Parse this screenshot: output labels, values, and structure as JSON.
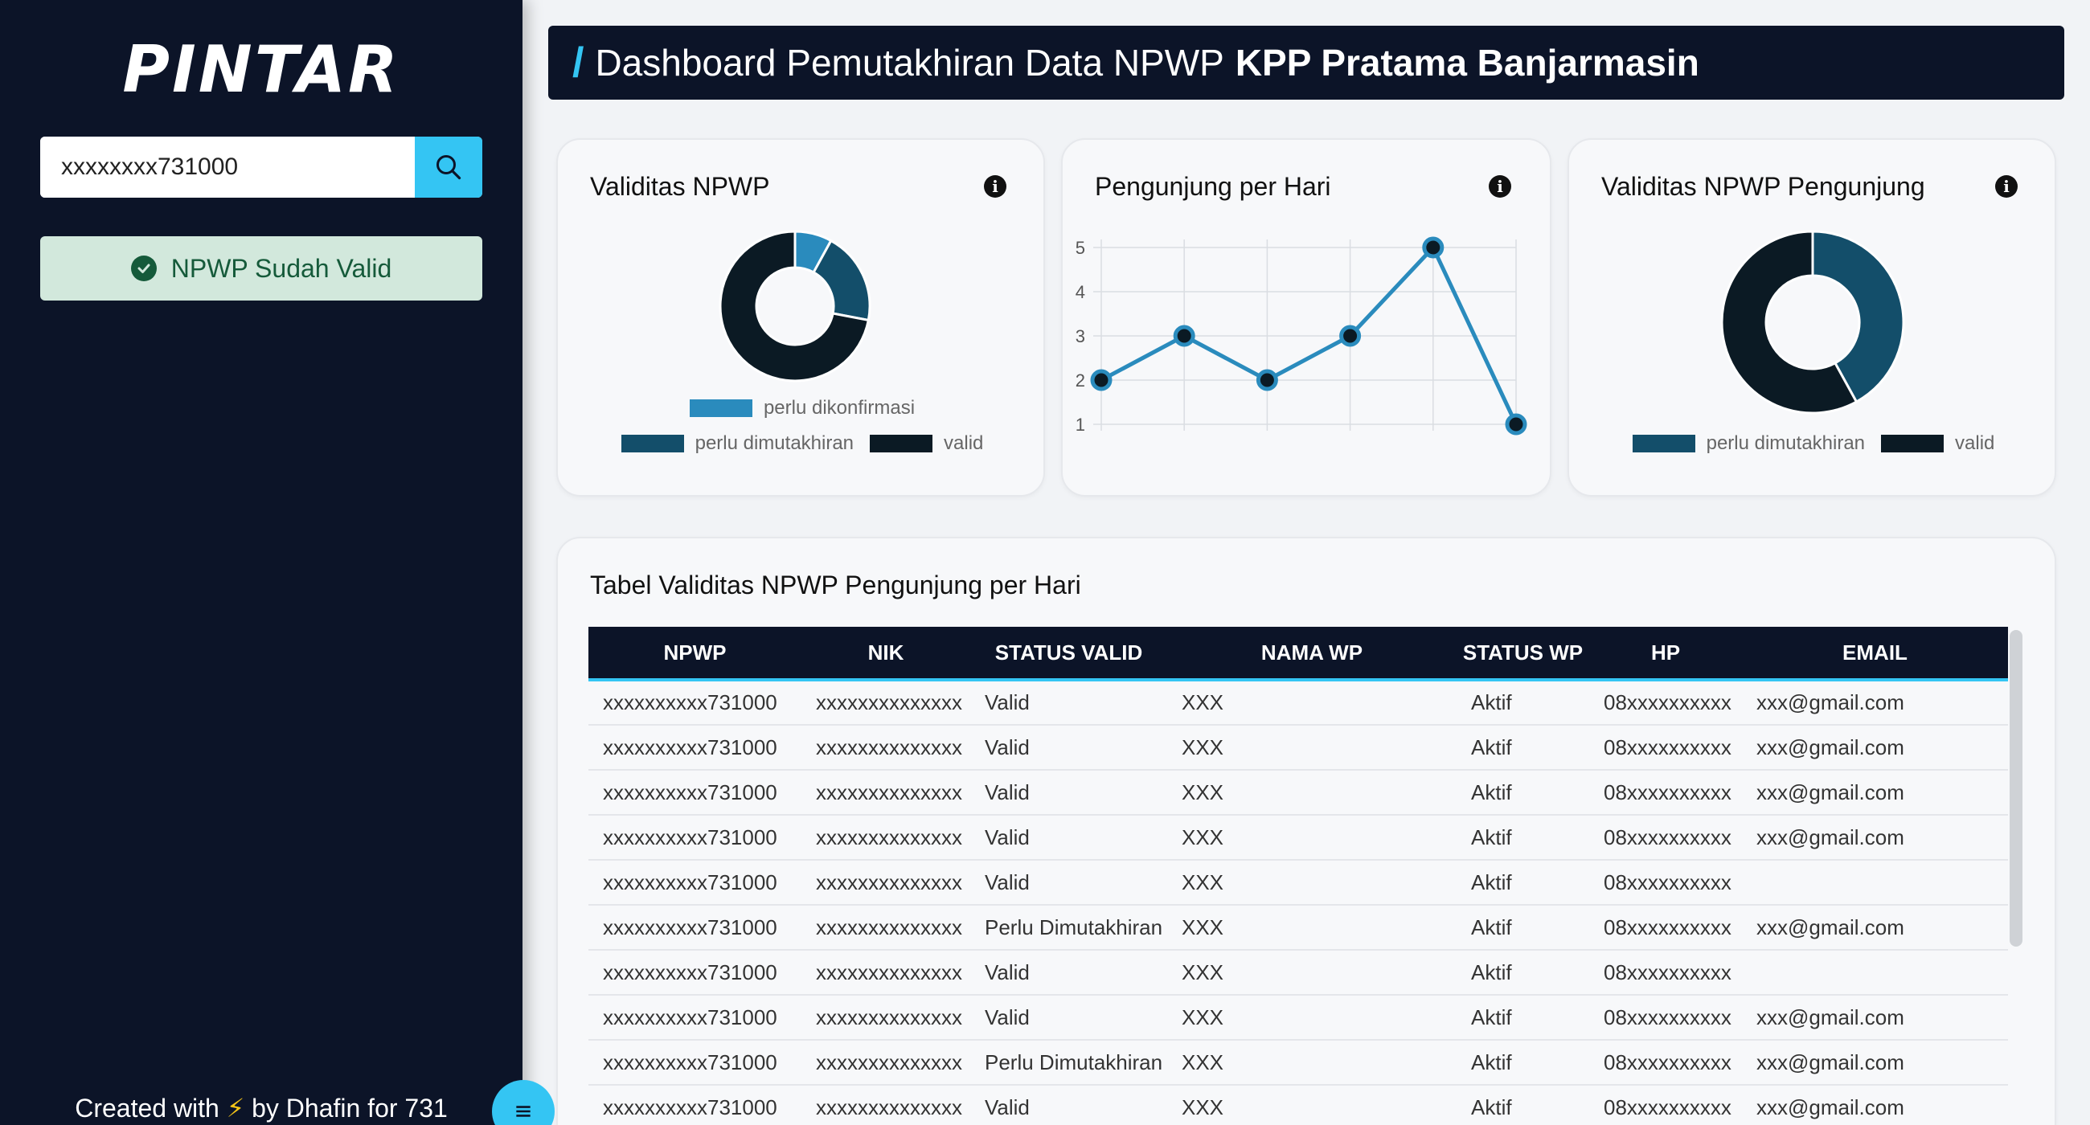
{
  "sidebar": {
    "logo": "PINTAR",
    "search": {
      "value": "xxxxxxxx731000",
      "placeholder": ""
    },
    "status_label": "NPWP Sudah Valid",
    "footer": {
      "before": "Created with",
      "bolt": "⚡",
      "after": "by Dhafin for 731"
    }
  },
  "header": {
    "slash": "/",
    "title": "Dashboard Pemutakhiran Data NPWP",
    "title_bold": "KPP Pratama Banjarmasin"
  },
  "cards": {
    "validitas": {
      "title": "Validitas NPWP",
      "legend": [
        "perlu dikonfirmasi",
        "perlu dimutakhiran",
        "valid"
      ]
    },
    "pengunjung": {
      "title": "Pengunjung per Hari"
    },
    "validitas_pengunjung": {
      "title": "Validitas NPWP Pengunjung",
      "legend": [
        "perlu dimutakhiran",
        "valid"
      ]
    },
    "tabel": {
      "title": "Tabel Validitas NPWP Pengunjung per Hari"
    }
  },
  "colors": {
    "konfirmasi": "#2a8bbd",
    "dimutakhiran": "#134e6a",
    "valid": "#0b1a24",
    "accent": "#34c5f3",
    "navy": "#0c1428"
  },
  "chart_data": [
    {
      "type": "pie",
      "title": "Validitas NPWP",
      "categories": [
        "perlu dikonfirmasi",
        "perlu dimutakhiran",
        "valid"
      ],
      "values": [
        8,
        20,
        72
      ],
      "legend": "bottom"
    },
    {
      "type": "line",
      "title": "Pengunjung per Hari",
      "x": [
        "",
        "",
        "",
        "",
        "",
        ""
      ],
      "values": [
        2,
        3,
        2,
        3,
        5,
        1
      ],
      "yticks": [
        1,
        2,
        3,
        4,
        5
      ],
      "ylim": [
        1,
        5
      ],
      "grid": true
    },
    {
      "type": "pie",
      "title": "Validitas NPWP Pengunjung",
      "categories": [
        "perlu dimutakhiran",
        "valid"
      ],
      "values": [
        42,
        58
      ],
      "legend": "bottom"
    }
  ],
  "table": {
    "headers": [
      "NPWP",
      "NIK",
      "STATUS VALID",
      "NAMA WP",
      "STATUS WP",
      "HP",
      "EMAIL"
    ],
    "rows": [
      [
        "xxxxxxxxxx731000",
        "xxxxxxxxxxxxxx",
        "Valid",
        "XXX",
        "Aktif",
        "08xxxxxxxxxx",
        "xxx@gmail.com"
      ],
      [
        "xxxxxxxxxx731000",
        "xxxxxxxxxxxxxx",
        "Valid",
        "XXX",
        "Aktif",
        "08xxxxxxxxxx",
        "xxx@gmail.com"
      ],
      [
        "xxxxxxxxxx731000",
        "xxxxxxxxxxxxxx",
        "Valid",
        "XXX",
        "Aktif",
        "08xxxxxxxxxx",
        "xxx@gmail.com"
      ],
      [
        "xxxxxxxxxx731000",
        "xxxxxxxxxxxxxx",
        "Valid",
        "XXX",
        "Aktif",
        "08xxxxxxxxxx",
        "xxx@gmail.com"
      ],
      [
        "xxxxxxxxxx731000",
        "xxxxxxxxxxxxxx",
        "Valid",
        "XXX",
        "Aktif",
        "08xxxxxxxxxx",
        ""
      ],
      [
        "xxxxxxxxxx731000",
        "xxxxxxxxxxxxxx",
        "Perlu Dimutakhiran",
        "XXX",
        "Aktif",
        "08xxxxxxxxxx",
        "xxx@gmail.com"
      ],
      [
        "xxxxxxxxxx731000",
        "xxxxxxxxxxxxxx",
        "Valid",
        "XXX",
        "Aktif",
        "08xxxxxxxxxx",
        ""
      ],
      [
        "xxxxxxxxxx731000",
        "xxxxxxxxxxxxxx",
        "Valid",
        "XXX",
        "Aktif",
        "08xxxxxxxxxx",
        "xxx@gmail.com"
      ],
      [
        "xxxxxxxxxx731000",
        "xxxxxxxxxxxxxx",
        "Perlu Dimutakhiran",
        "XXX",
        "Aktif",
        "08xxxxxxxxxx",
        "xxx@gmail.com"
      ],
      [
        "xxxxxxxxxx731000",
        "xxxxxxxxxxxxxx",
        "Valid",
        "XXX",
        "Aktif",
        "08xxxxxxxxxx",
        "xxx@gmail.com"
      ]
    ]
  }
}
